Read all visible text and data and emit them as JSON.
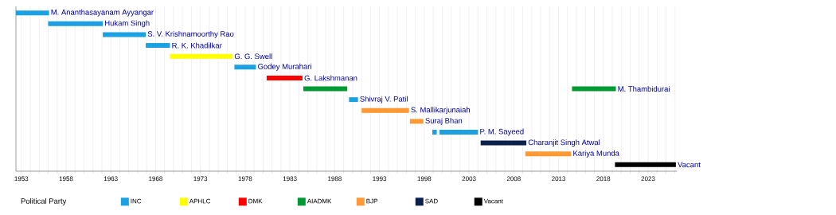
{
  "chart_data": {
    "type": "bar",
    "orientation": "horizontal",
    "categories": [
      "M. Ananthasayanam Ayyangar",
      "Hukam Singh",
      "S. V. Krishnamoorthy Rao",
      "R. K. Khadilkar",
      "G. G. Swell",
      "Godey Murahari",
      "G. Lakshmanan",
      "M. Thambidurai",
      "Shivraj V. Patil",
      "S. Mallikarjunaiah",
      "Suraj Bhan",
      "P. M. Sayeed",
      "Charanjit Singh Atwal",
      "Kariya Munda",
      "Vacant"
    ],
    "series": [
      {
        "name": "INC",
        "color": "#1ba1e2",
        "base": [
          1952.4,
          1956.0,
          1962.1,
          1966.9,
          null,
          1976.8,
          null,
          null,
          1989.6,
          null,
          null,
          1998.9,
          null,
          null,
          null
        ],
        "values": [
          3.7,
          6.1,
          4.8,
          2.7,
          null,
          2.4,
          null,
          null,
          1.0,
          null,
          null,
          0.5,
          null,
          null,
          null
        ]
      },
      {
        "name": "APHLC",
        "color": "#ffff00",
        "base": [
          null,
          null,
          null,
          null,
          1969.6,
          null,
          null,
          null,
          null,
          null,
          null,
          null,
          null,
          null,
          null
        ],
        "values": [
          null,
          null,
          null,
          null,
          7.0,
          null,
          null,
          null,
          null,
          null,
          null,
          null,
          null,
          null,
          null
        ]
      },
      {
        "name": "DMK",
        "color": "#ff0000",
        "base": [
          null,
          null,
          null,
          null,
          null,
          null,
          1980.4,
          null,
          null,
          null,
          null,
          null,
          null,
          null,
          null
        ],
        "values": [
          null,
          null,
          null,
          null,
          null,
          null,
          4.0,
          null,
          null,
          null,
          null,
          null,
          null,
          null,
          null
        ]
      },
      {
        "name": "AIADMK",
        "color": "#009933",
        "base": [
          null,
          null,
          null,
          null,
          null,
          null,
          null,
          1984.5,
          null,
          null,
          null,
          null,
          null,
          null,
          null
        ],
        "values": [
          null,
          null,
          null,
          null,
          null,
          null,
          null,
          4.9,
          null,
          null,
          null,
          null,
          null,
          null,
          null
        ]
      },
      {
        "name": "BJP",
        "color": "#ff9933",
        "base": [
          null,
          null,
          null,
          null,
          null,
          null,
          null,
          null,
          null,
          1991.0,
          1996.4,
          null,
          null,
          2009.3,
          null
        ],
        "values": [
          null,
          null,
          null,
          null,
          null,
          null,
          null,
          null,
          null,
          5.3,
          1.5,
          null,
          null,
          5.1,
          null
        ]
      },
      {
        "name": "SAD",
        "color": "#0b1f4b",
        "base": [
          null,
          null,
          null,
          null,
          null,
          null,
          null,
          null,
          null,
          null,
          null,
          null,
          2004.3,
          null,
          null
        ],
        "values": [
          null,
          null,
          null,
          null,
          null,
          null,
          null,
          null,
          null,
          null,
          null,
          null,
          5.1,
          null,
          null
        ]
      },
      {
        "name": "Vacant",
        "color": "#000000",
        "base": [
          null,
          null,
          null,
          null,
          null,
          null,
          null,
          null,
          null,
          null,
          null,
          null,
          null,
          null,
          2019.3
        ],
        "values": [
          null,
          null,
          null,
          null,
          null,
          null,
          null,
          null,
          null,
          null,
          null,
          null,
          null,
          null,
          6.8
        ]
      },
      {
        "color": "#009933",
        "base": [
          null,
          null,
          null,
          null,
          null,
          null,
          null,
          2014.5,
          null,
          null,
          null,
          null,
          null,
          null,
          null
        ],
        "values": [
          null,
          null,
          null,
          null,
          null,
          null,
          null,
          4.9,
          null,
          null,
          null,
          null,
          null,
          null,
          null
        ]
      },
      {
        "color": "#1ba1e2",
        "base": [
          null,
          null,
          null,
          null,
          null,
          null,
          null,
          null,
          null,
          null,
          null,
          1999.7,
          null,
          null,
          null
        ],
        "values": [
          null,
          null,
          null,
          null,
          null,
          null,
          null,
          null,
          null,
          null,
          null,
          4.3,
          null,
          null,
          null
        ]
      }
    ],
    "xlim": [
      1952.4,
      2026.2
    ],
    "xticks": [
      1953,
      {
        "value": 1954,
        "label": null
      },
      {
        "value": 1955,
        "label": null
      },
      {
        "value": 1956,
        "label": null
      },
      {
        "value": 1957,
        "label": null
      },
      1958,
      {
        "value": 1959,
        "label": null
      },
      {
        "value": 1960,
        "label": null
      },
      {
        "value": 1961,
        "label": null
      },
      {
        "value": 1962,
        "label": null
      },
      1963,
      {
        "value": 1964,
        "label": null
      },
      {
        "value": 1965,
        "label": null
      },
      {
        "value": 1966,
        "label": null
      },
      {
        "value": 1967,
        "label": null
      },
      1968,
      {
        "value": 1969,
        "label": null
      },
      {
        "value": 1970,
        "label": null
      },
      {
        "value": 1971,
        "label": null
      },
      {
        "value": 1972,
        "label": null
      },
      1973,
      {
        "value": 1974,
        "label": null
      },
      {
        "value": 1975,
        "label": null
      },
      {
        "value": 1976,
        "label": null
      },
      {
        "value": 1977,
        "label": null
      },
      1978,
      {
        "value": 1979,
        "label": null
      },
      {
        "value": 1980,
        "label": null
      },
      {
        "value": 1981,
        "label": null
      },
      {
        "value": 1982,
        "label": null
      },
      1983,
      {
        "value": 1984,
        "label": null
      },
      {
        "value": 1985,
        "label": null
      },
      {
        "value": 1986,
        "label": null
      },
      {
        "value": 1987,
        "label": null
      },
      1988,
      {
        "value": 1989,
        "label": null
      },
      {
        "value": 1990,
        "label": null
      },
      {
        "value": 1991,
        "label": null
      },
      {
        "value": 1992,
        "label": null
      },
      1993,
      {
        "value": 1994,
        "label": null
      },
      {
        "value": 1995,
        "label": null
      },
      {
        "value": 1996,
        "label": null
      },
      {
        "value": 1997,
        "label": null
      },
      1998,
      {
        "value": 1999,
        "label": null
      },
      {
        "value": 2000,
        "label": null
      },
      {
        "value": 2001,
        "label": null
      },
      {
        "value": 2002,
        "label": null
      },
      2003,
      {
        "value": 2004,
        "label": null
      },
      {
        "value": 2005,
        "label": null
      },
      {
        "value": 2006,
        "label": null
      },
      {
        "value": 2007,
        "label": null
      },
      2008,
      {
        "value": 2009,
        "label": null
      },
      {
        "value": 2010,
        "label": null
      },
      {
        "value": 2011,
        "label": null
      },
      {
        "value": 2012,
        "label": null
      },
      2013,
      {
        "value": 2014,
        "label": null
      },
      {
        "value": 2015,
        "label": null
      },
      {
        "value": 2016,
        "label": null
      },
      {
        "value": 2017,
        "label": null
      },
      2018,
      {
        "value": 2019,
        "label": null
      },
      {
        "value": 2020,
        "label": null
      },
      {
        "value": 2021,
        "label": null
      },
      {
        "value": 2022,
        "label": null
      },
      2023,
      {
        "value": 2024,
        "label": null
      },
      {
        "value": 2025,
        "label": null
      },
      {
        "value": 2026,
        "label": null
      }
    ],
    "grid": "x",
    "legend": "bottom",
    "legend_title": "Political Party"
  }
}
